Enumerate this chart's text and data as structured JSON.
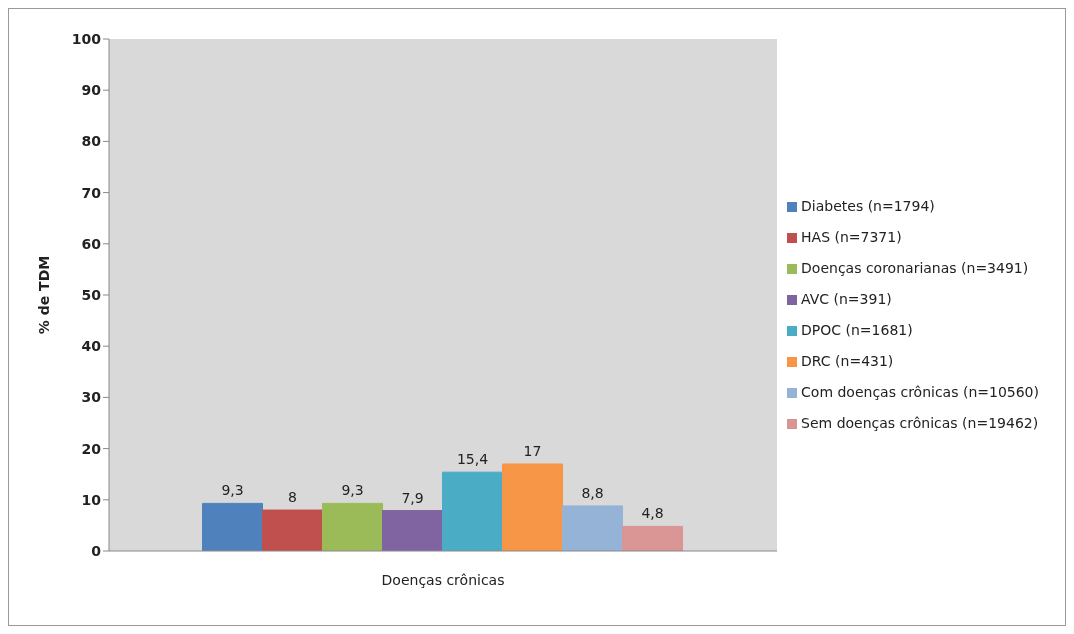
{
  "chart_data": {
    "type": "bar",
    "ylabel": "% de TDM",
    "categories": [
      "Doenças crônicas"
    ],
    "series": [
      {
        "name": "Diabetes (n=1794)",
        "color": "#4f81bd",
        "values": [
          9.3
        ],
        "value_labels": [
          "9,3"
        ]
      },
      {
        "name": "HAS (n=7371)",
        "color": "#c0504d",
        "values": [
          8
        ],
        "value_labels": [
          "8"
        ]
      },
      {
        "name": "Doenças coronarianas (n=3491)",
        "color": "#9bbb59",
        "values": [
          9.3
        ],
        "value_labels": [
          "9,3"
        ]
      },
      {
        "name": "AVC (n=391)",
        "color": "#8064a2",
        "values": [
          7.9
        ],
        "value_labels": [
          "7,9"
        ]
      },
      {
        "name": "DPOC (n=1681)",
        "color": "#4bacc6",
        "values": [
          15.4
        ],
        "value_labels": [
          "15,4"
        ]
      },
      {
        "name": "DRC (n=431)",
        "color": "#f79646",
        "values": [
          17
        ],
        "value_labels": [
          "17"
        ]
      },
      {
        "name": "Com doenças crônicas (n=10560)",
        "color": "#95b3d7",
        "values": [
          8.8
        ],
        "value_labels": [
          "8,8"
        ]
      },
      {
        "name": "Sem doenças crônicas (n=19462)",
        "color": "#d99694",
        "values": [
          4.8
        ],
        "value_labels": [
          "4,8"
        ]
      }
    ],
    "ylim": [
      0,
      100
    ],
    "yticks": [
      0,
      10,
      20,
      30,
      40,
      50,
      60,
      70,
      80,
      90,
      100
    ],
    "grid": false,
    "legend": "right"
  }
}
